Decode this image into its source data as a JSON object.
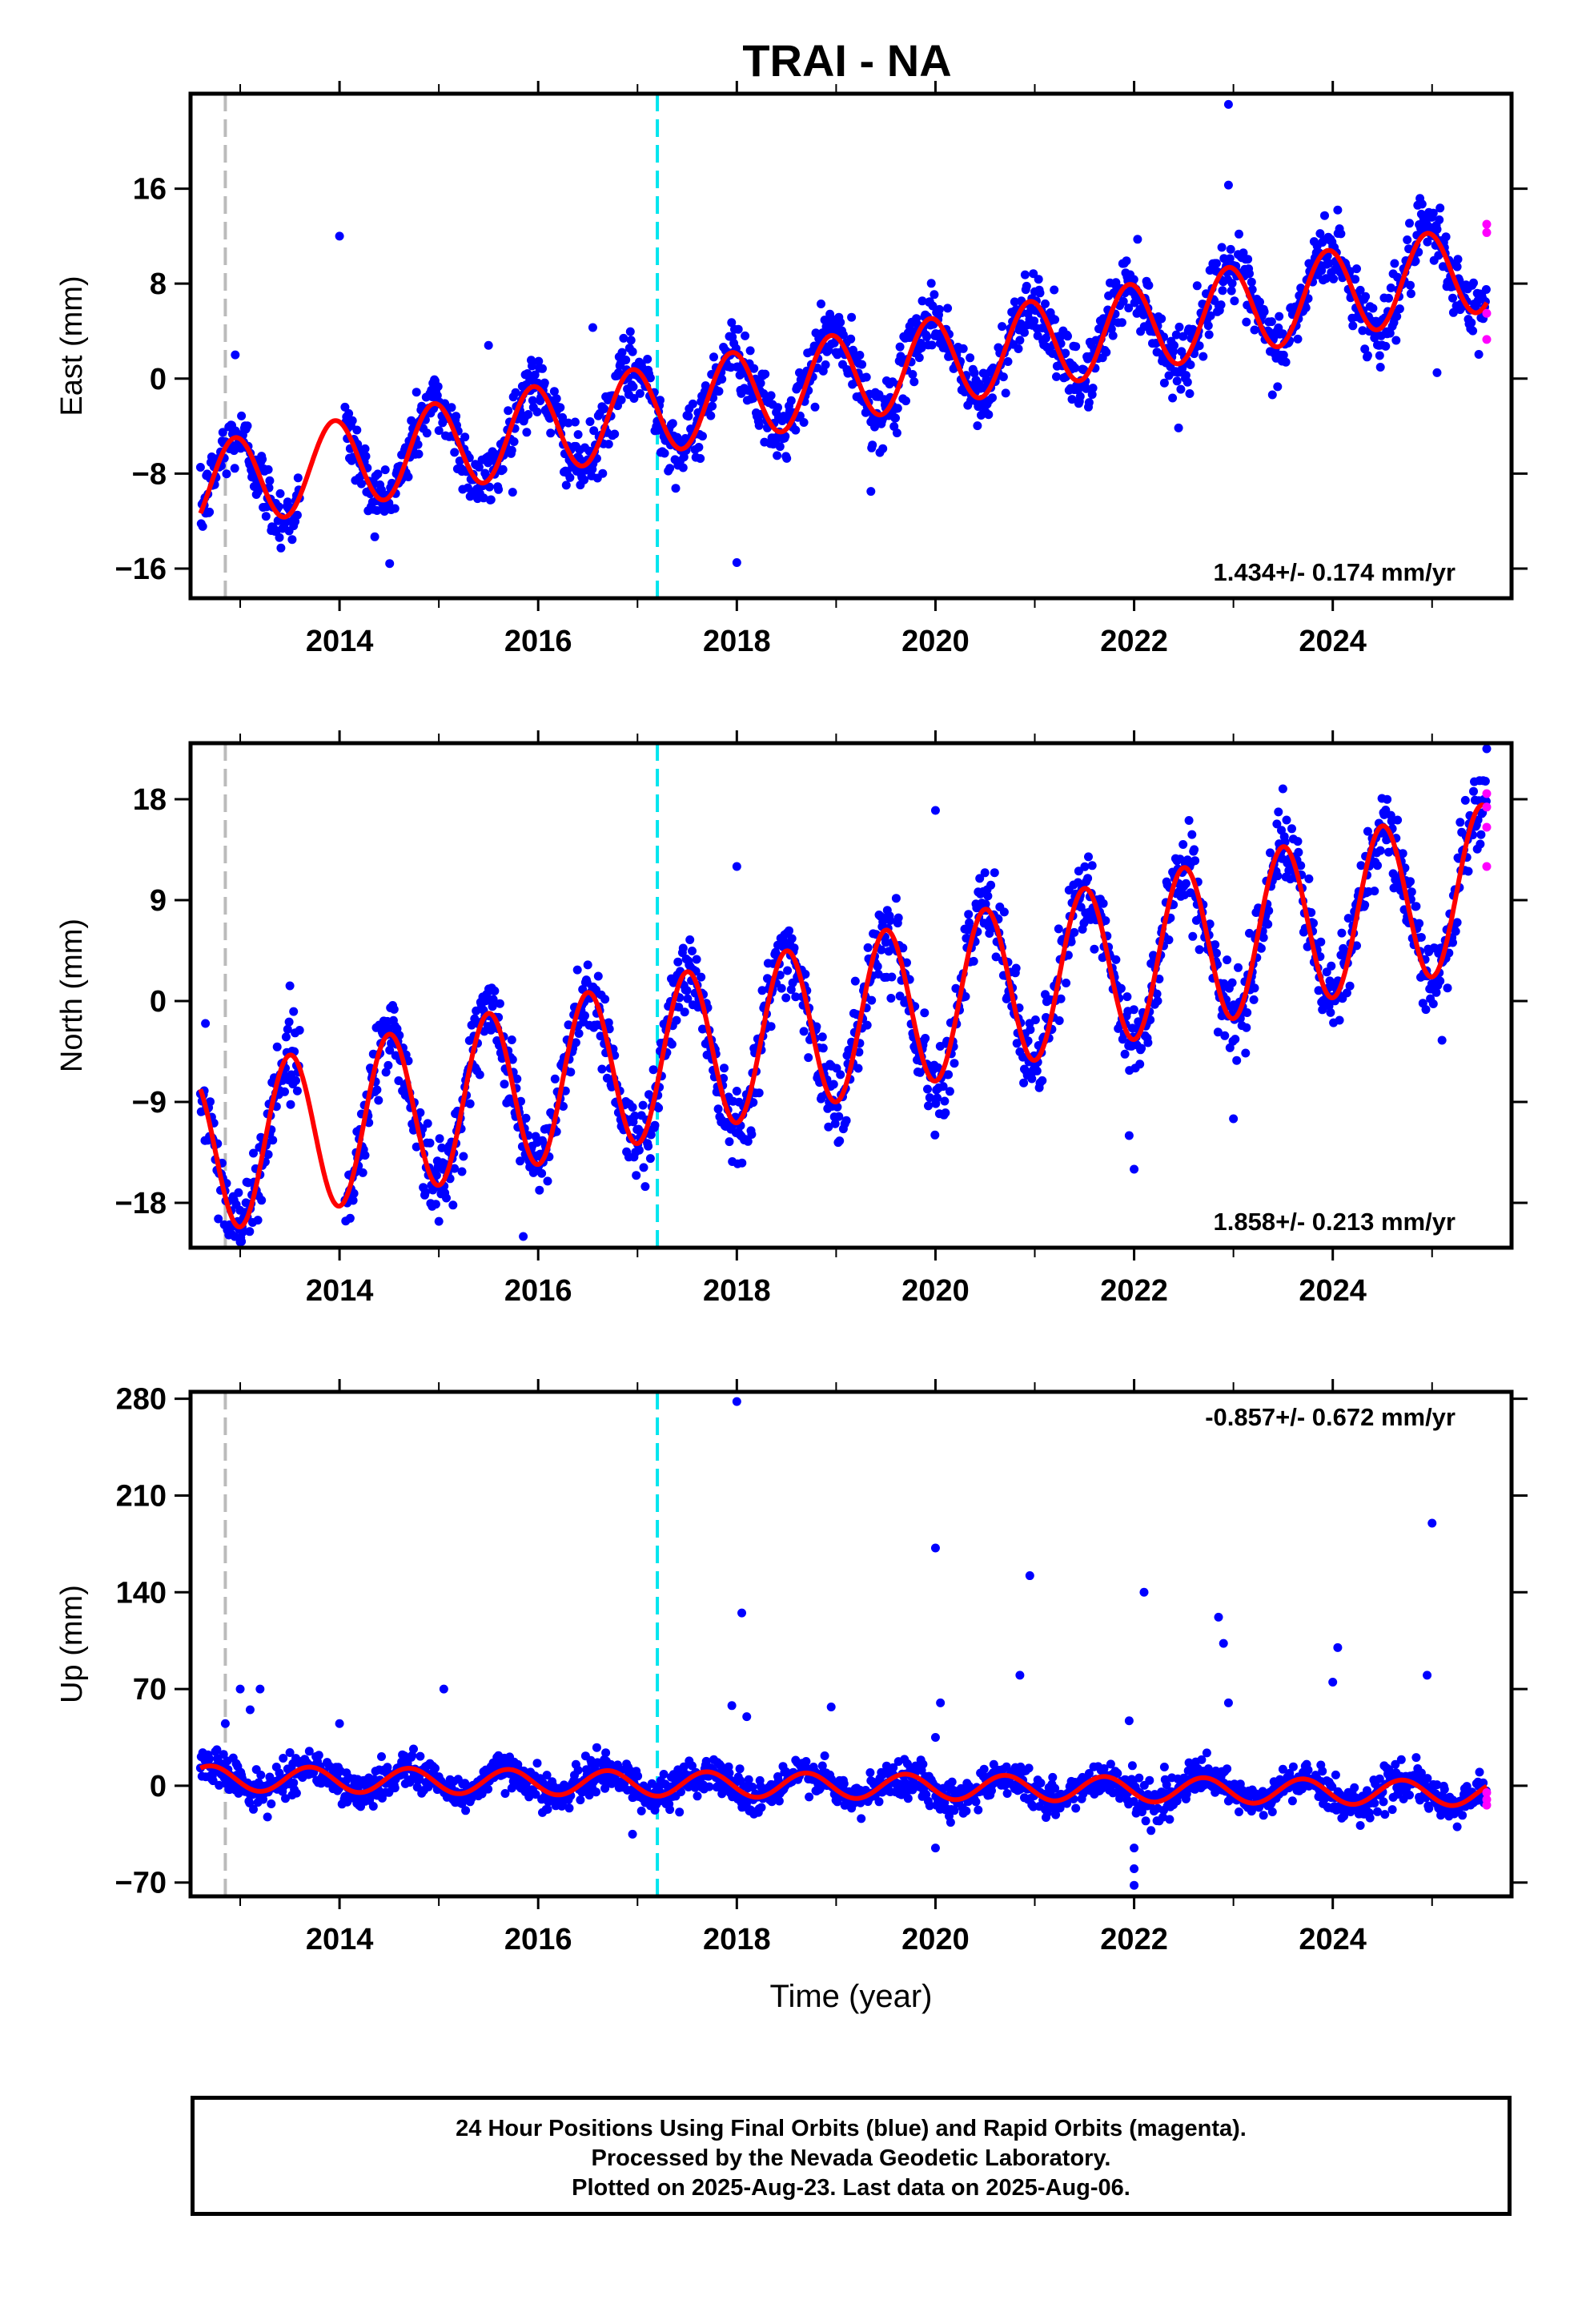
{
  "title": "TRAI - NA",
  "colors": {
    "final_orbits": "#0000ff",
    "rapid_orbits": "#ff00ff",
    "model_fit": "#ff0000",
    "event_gray": "#bbbbbb",
    "event_cyan": "#00e5ee",
    "frame": "#000000"
  },
  "chart_data": [
    {
      "type": "scatter",
      "component": "East",
      "ylabel": "East (mm)",
      "xlabel": "",
      "xlim": [
        2012.5,
        2025.8
      ],
      "ylim": [
        -18.5,
        24
      ],
      "xticks": [
        2014,
        2016,
        2018,
        2020,
        2022,
        2024
      ],
      "yticks": [
        -16,
        -8,
        0,
        8,
        16
      ],
      "rate_text": "1.434+/- 0.174 mm/yr",
      "rate_position": "bottom-right",
      "event_lines": [
        {
          "x": 2012.85,
          "color": "gray"
        },
        {
          "x": 2017.2,
          "color": "cyan"
        }
      ],
      "model": {
        "start": 2012.6,
        "end": 2025.55,
        "ref_year": 2019.0,
        "offset": 0.0,
        "rate_mm_yr": 1.434,
        "amplitude": 3.7,
        "phase_peak": 0.95,
        "noise_sd": 1.4
      },
      "model_gap": [
        2013.6,
        2014.05
      ],
      "outliers": [
        [
          2012.95,
          2.0
        ],
        [
          2014.0,
          12.0
        ],
        [
          2015.5,
          2.8
        ],
        [
          2016.55,
          4.3
        ],
        [
          2018.0,
          -15.5
        ],
        [
          2019.35,
          -9.5
        ],
        [
          2022.95,
          16.3
        ],
        [
          2022.95,
          23.1
        ],
        [
          2024.05,
          14.2
        ],
        [
          2025.05,
          0.5
        ]
      ],
      "rapid_points": [
        [
          2025.55,
          13.0
        ],
        [
          2025.55,
          12.3
        ],
        [
          2025.55,
          5.5
        ],
        [
          2025.55,
          3.3
        ]
      ]
    },
    {
      "type": "scatter",
      "component": "North",
      "ylabel": "North (mm)",
      "xlabel": "",
      "xlim": [
        2012.5,
        2025.8
      ],
      "ylim": [
        -22,
        23
      ],
      "xticks": [
        2014,
        2016,
        2018,
        2020,
        2022,
        2024
      ],
      "yticks": [
        -18,
        -9,
        0,
        9,
        18
      ],
      "rate_text": "1.858+/- 0.213 mm/yr",
      "rate_position": "bottom-right",
      "event_lines": [
        {
          "x": 2012.85,
          "color": "gray"
        },
        {
          "x": 2017.2,
          "color": "cyan"
        }
      ],
      "model": {
        "start": 2012.6,
        "end": 2025.55,
        "ref_year": 2019.0,
        "offset": -1.8,
        "rate_mm_yr": 1.858,
        "amplitude": 7.2,
        "phase_peak": 0.5,
        "noise_sd": 1.8
      },
      "model_gap": [
        2013.6,
        2014.05
      ],
      "outliers": [
        [
          2012.65,
          -2.0
        ],
        [
          2013.0,
          -21.5
        ],
        [
          2015.85,
          -21.0
        ],
        [
          2018.0,
          12.0
        ],
        [
          2020.0,
          17.0
        ],
        [
          2021.95,
          -12.0
        ],
        [
          2022.0,
          -15.0
        ],
        [
          2023.0,
          -10.5
        ],
        [
          2025.1,
          -3.5
        ],
        [
          2025.55,
          22.5
        ]
      ],
      "rapid_points": [
        [
          2025.55,
          18.5
        ],
        [
          2025.55,
          17.3
        ],
        [
          2025.55,
          15.5
        ],
        [
          2025.55,
          12.0
        ]
      ]
    },
    {
      "type": "scatter",
      "component": "Up",
      "ylabel": "Up (mm)",
      "xlabel": "Time (year)",
      "xlim": [
        2012.5,
        2025.8
      ],
      "ylim": [
        -80,
        285
      ],
      "xticks": [
        2014,
        2016,
        2018,
        2020,
        2022,
        2024
      ],
      "yticks": [
        -70,
        0,
        70,
        140,
        210,
        280
      ],
      "rate_text": "-0.857+/- 0.672 mm/yr",
      "rate_position": "top-right",
      "event_lines": [
        {
          "x": 2012.85,
          "color": "gray"
        },
        {
          "x": 2017.2,
          "color": "cyan"
        }
      ],
      "model": {
        "start": 2012.6,
        "end": 2025.55,
        "ref_year": 2019.0,
        "offset": 0.0,
        "rate_mm_yr": -0.857,
        "amplitude": 9.0,
        "phase_peak": 0.7,
        "noise_sd": 6.5
      },
      "model_gap": [],
      "outliers": [
        [
          2012.85,
          45.0
        ],
        [
          2013.0,
          70.0
        ],
        [
          2013.1,
          55.0
        ],
        [
          2013.2,
          70.0
        ],
        [
          2014.0,
          45.0
        ],
        [
          2015.05,
          70.0
        ],
        [
          2016.95,
          -35.0
        ],
        [
          2017.95,
          58.0
        ],
        [
          2018.0,
          278.0
        ],
        [
          2018.05,
          125.0
        ],
        [
          2018.1,
          50.0
        ],
        [
          2018.95,
          57.0
        ],
        [
          2020.0,
          172.0
        ],
        [
          2020.0,
          -45.0
        ],
        [
          2020.0,
          35.0
        ],
        [
          2020.05,
          60.0
        ],
        [
          2020.85,
          80.0
        ],
        [
          2020.95,
          152.0
        ],
        [
          2021.95,
          47.0
        ],
        [
          2022.0,
          -45.0
        ],
        [
          2022.0,
          -60.0
        ],
        [
          2022.0,
          -72.0
        ],
        [
          2022.1,
          140.0
        ],
        [
          2022.85,
          122.0
        ],
        [
          2022.9,
          103.0
        ],
        [
          2022.95,
          60.0
        ],
        [
          2024.0,
          75.0
        ],
        [
          2024.05,
          100.0
        ],
        [
          2024.95,
          80.0
        ],
        [
          2025.0,
          190.0
        ]
      ],
      "rapid_points": [
        [
          2025.55,
          -5.0
        ],
        [
          2025.55,
          -10.0
        ],
        [
          2025.55,
          -14.0
        ]
      ]
    }
  ],
  "footer": {
    "line1": "24 Hour Positions Using Final Orbits (blue) and Rapid Orbits (magenta).",
    "line2": "Processed by the Nevada Geodetic Laboratory.",
    "line3": "Plotted on 2025-Aug-23. Last data on 2025-Aug-06."
  }
}
